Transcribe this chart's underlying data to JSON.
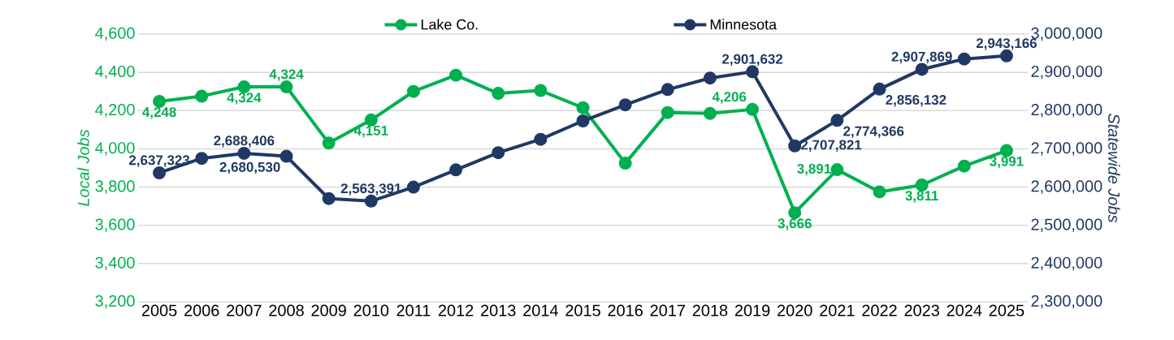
{
  "chart_data": {
    "type": "line",
    "categories": [
      "2005",
      "2006",
      "2007",
      "2008",
      "2009",
      "2010",
      "2011",
      "2012",
      "2013",
      "2014",
      "2015",
      "2016",
      "2017",
      "2018",
      "2019",
      "2020",
      "2021",
      "2022",
      "2023",
      "2024",
      "2025"
    ],
    "series": [
      {
        "name": "Lake Co.",
        "color": "#00b050",
        "values": [
          4248,
          4275,
          4324,
          4324,
          4030,
          4151,
          4300,
          4385,
          4290,
          4305,
          4215,
          3925,
          4190,
          4185,
          4206,
          3666,
          3891,
          3775,
          3811,
          3910,
          3991
        ],
        "value_labels": [
          "4,248",
          null,
          "4,324",
          "4,324",
          null,
          "4,151",
          null,
          null,
          null,
          null,
          null,
          null,
          null,
          null,
          "4,206",
          "3,666",
          "3,891",
          null,
          "3,811",
          null,
          "3,991"
        ]
      },
      {
        "name": "Minnesota",
        "color": "#203864",
        "axis": "y2",
        "values": [
          2637323,
          2675000,
          2688406,
          2680530,
          2570000,
          2563391,
          2600000,
          2645000,
          2690000,
          2725000,
          2773000,
          2815000,
          2855000,
          2885000,
          2901632,
          2707821,
          2774366,
          2856132,
          2907869,
          2935000,
          2943166
        ],
        "value_labels": [
          "2,637,323",
          null,
          "2,688,406",
          "2,680,530",
          null,
          "2,563,391",
          null,
          null,
          null,
          null,
          null,
          null,
          null,
          null,
          "2,901,632",
          "2,707,821",
          "2,774,366",
          "2,856,132",
          "2,907,869",
          null,
          "2,943,166"
        ]
      }
    ],
    "ylabel": "Local Jobs",
    "y2label": "Statewide Jobs",
    "ylim": [
      3200,
      4600
    ],
    "yticks": [
      {
        "value": 3200,
        "label": "3,200"
      },
      {
        "value": 3400,
        "label": "3,400"
      },
      {
        "value": 3600,
        "label": "3,600"
      },
      {
        "value": 3800,
        "label": "3,800"
      },
      {
        "value": 4000,
        "label": "4,000"
      },
      {
        "value": 4200,
        "label": "4,200"
      },
      {
        "value": 4400,
        "label": "4,400"
      },
      {
        "value": 4600,
        "label": "4,600"
      }
    ],
    "y2lim": [
      2300000,
      3000000
    ],
    "y2ticks": [
      {
        "value": 2300000,
        "label": "2,300,000"
      },
      {
        "value": 2400000,
        "label": "2,400,000"
      },
      {
        "value": 2500000,
        "label": "2,500,000"
      },
      {
        "value": 2600000,
        "label": "2,600,000"
      },
      {
        "value": 2700000,
        "label": "2,700,000"
      },
      {
        "value": 2800000,
        "label": "2,800,000"
      },
      {
        "value": 2900000,
        "label": "2,900,000"
      },
      {
        "value": 3000000,
        "label": "3,000,000"
      }
    ],
    "grid": "y",
    "legend": "top",
    "marker": "circle",
    "line_style": "solid"
  }
}
